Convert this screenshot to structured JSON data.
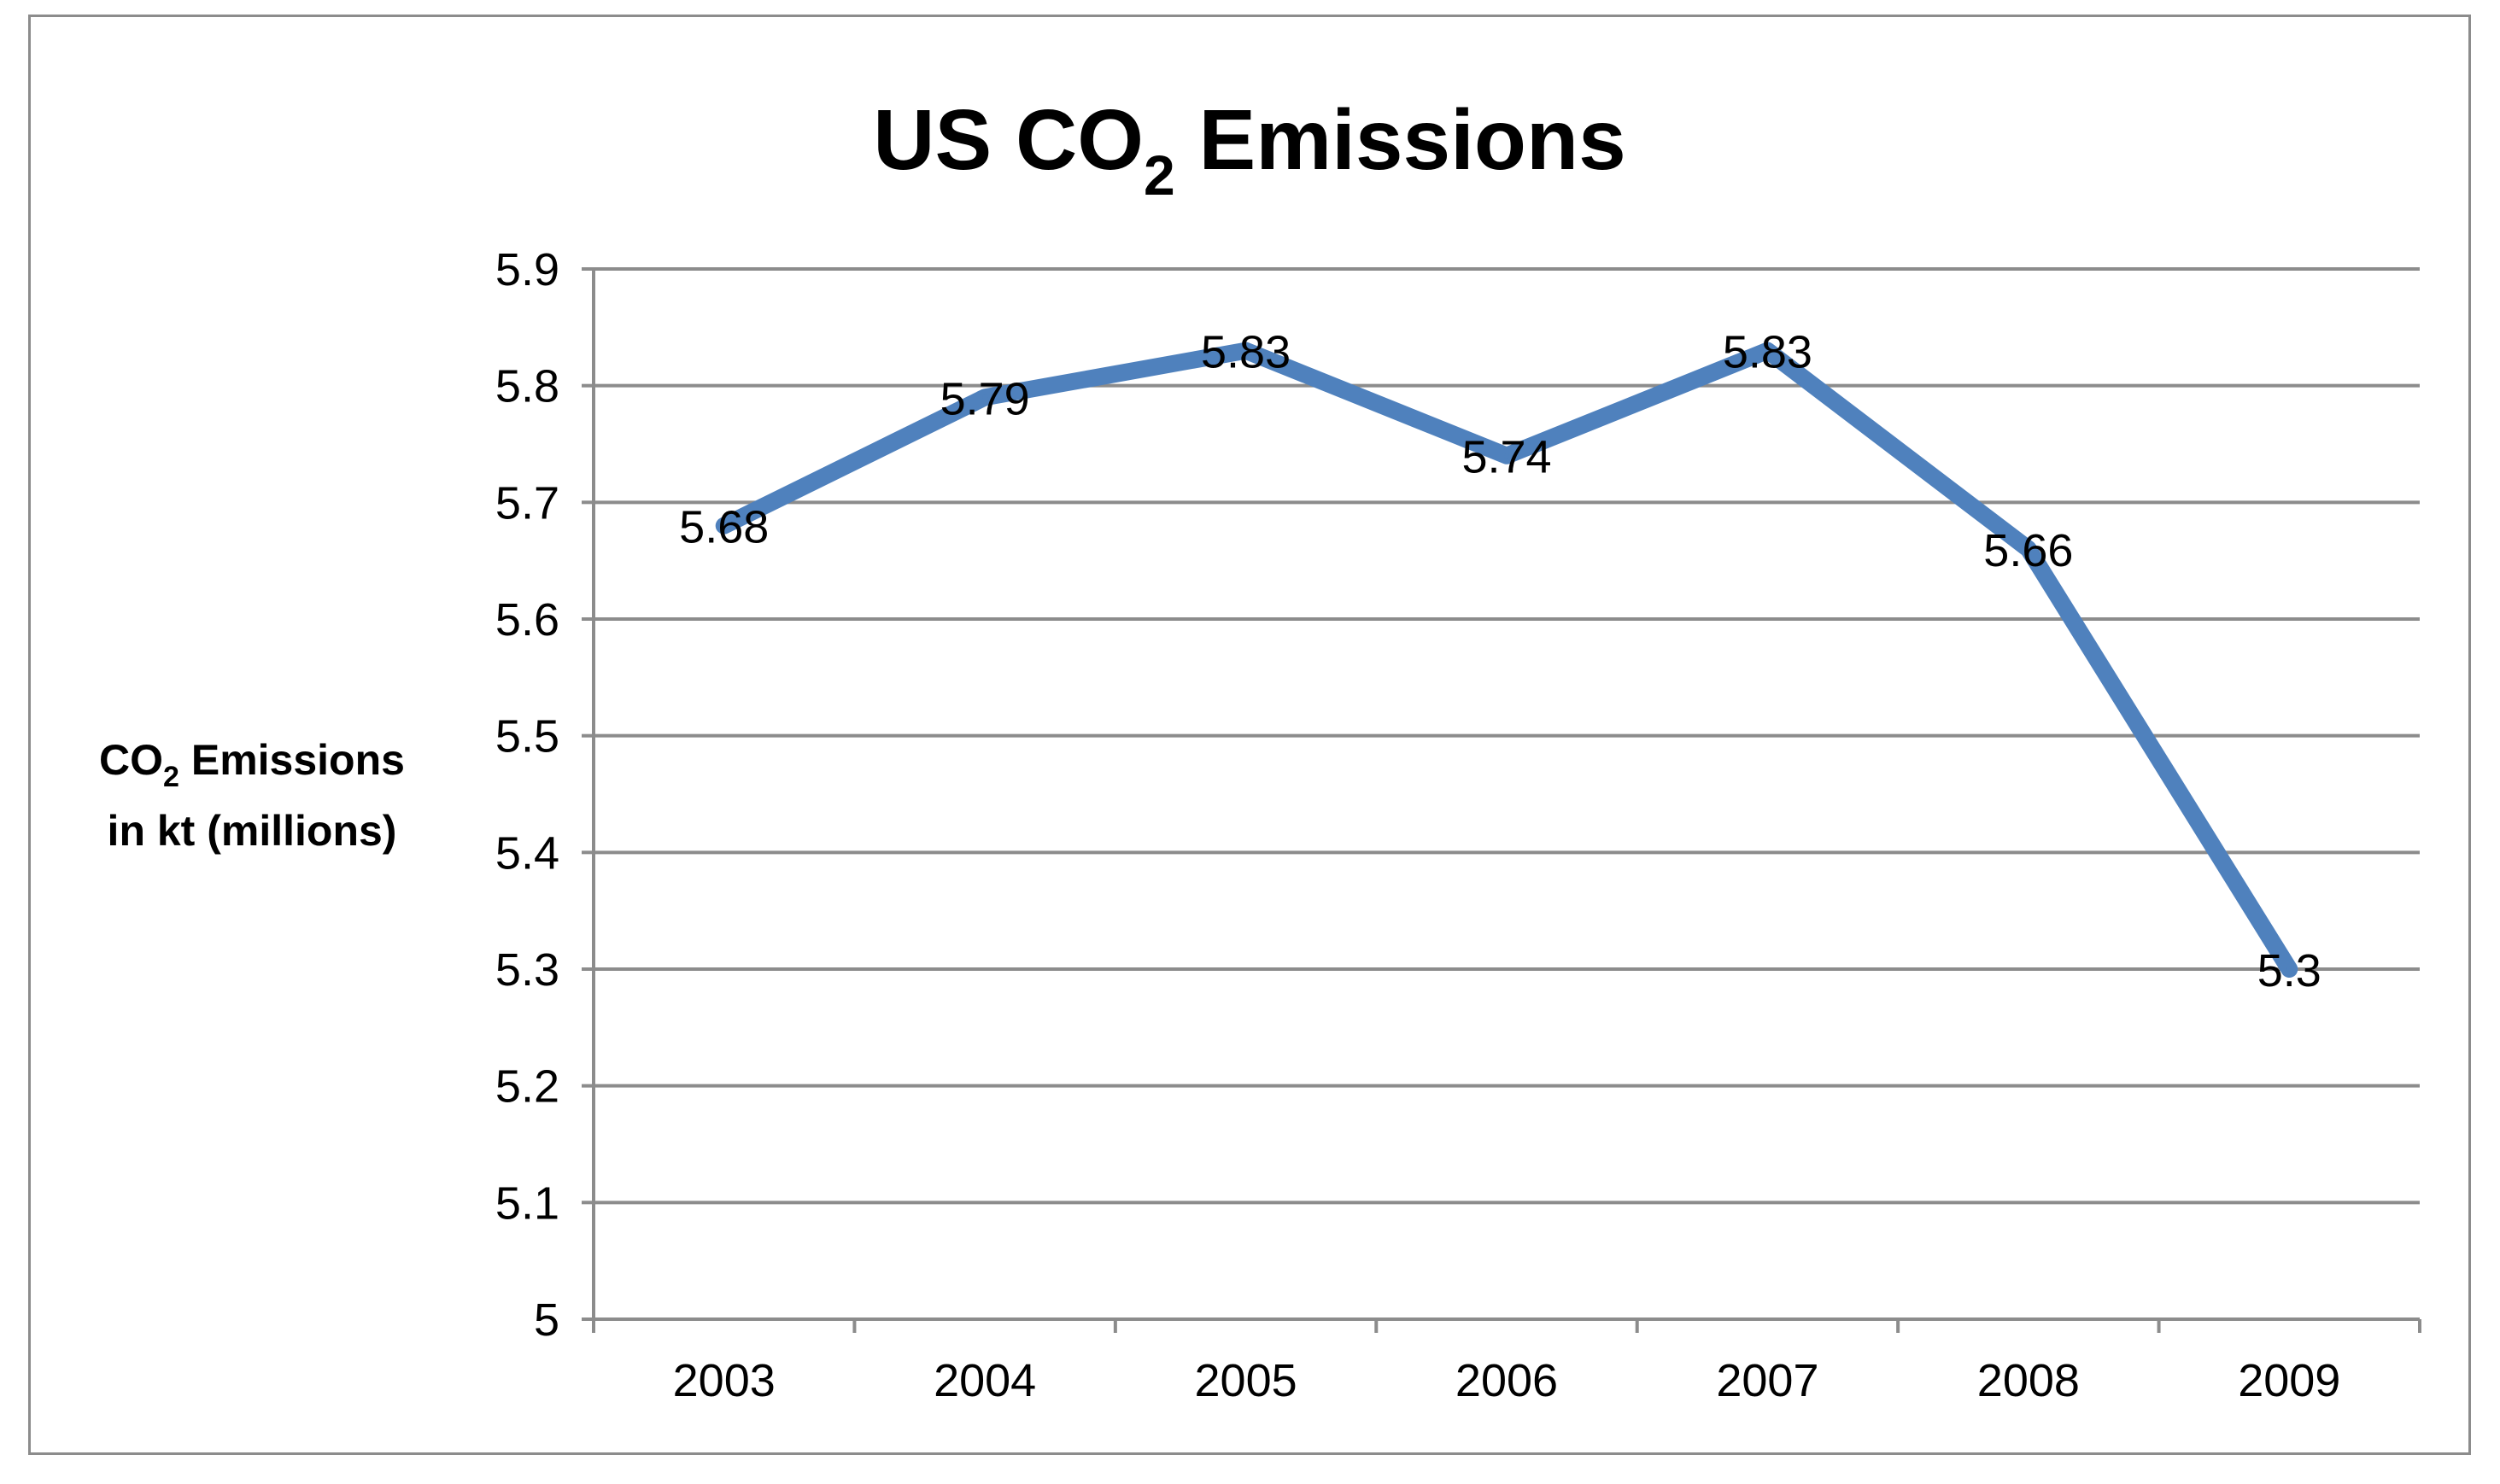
{
  "chart_data": {
    "type": "line",
    "title": {
      "main": "US CO",
      "subscript": "2",
      "suffix": " Emissions"
    },
    "ylabel": {
      "line1_main": "CO",
      "line1_subscript": "2",
      "line1_suffix": " Emissions",
      "line2": "in kt (millions)"
    },
    "xlabel": "",
    "categories": [
      "2003",
      "2004",
      "2005",
      "2006",
      "2007",
      "2008",
      "2009"
    ],
    "series": [
      {
        "values": [
          5.68,
          5.79,
          5.83,
          5.74,
          5.83,
          5.66,
          5.3
        ],
        "data_labels": [
          "5.68",
          "5.79",
          "5.83",
          "5.74",
          "5.83",
          "5.66",
          "5.3"
        ],
        "color": "#4f81bd"
      }
    ],
    "ylim": [
      5,
      5.9
    ],
    "yticks": [
      "5",
      "5.1",
      "5.2",
      "5.3",
      "5.4",
      "5.5",
      "5.6",
      "5.7",
      "5.8",
      "5.9"
    ],
    "grid": true,
    "legend": "none"
  },
  "colors": {
    "line": "#4f81bd",
    "grid": "#8c8c8c",
    "frame": "#8c8c8c"
  }
}
